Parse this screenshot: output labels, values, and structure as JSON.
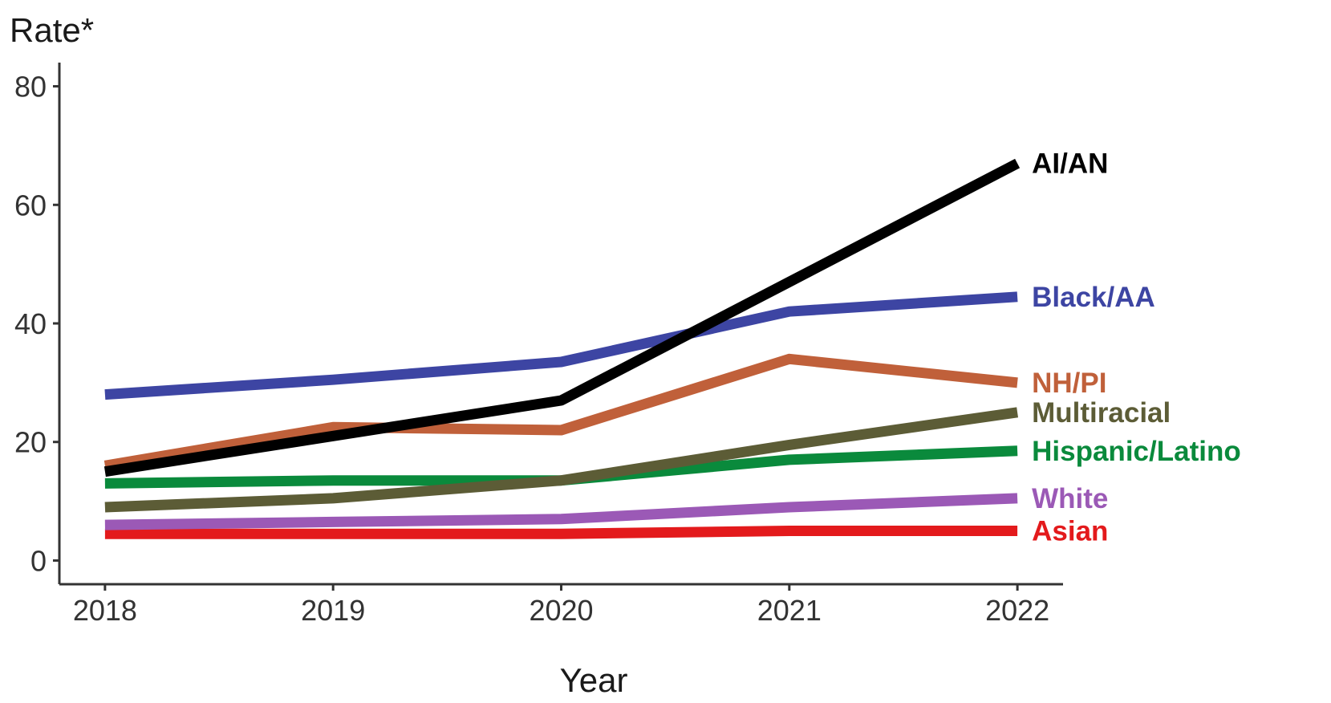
{
  "chart_data": {
    "type": "line",
    "title": "",
    "xlabel": "Year",
    "ylabel": "Rate*",
    "x": [
      2018,
      2019,
      2020,
      2021,
      2022
    ],
    "xticks": [
      "2018",
      "2019",
      "2020",
      "2021",
      "2022"
    ],
    "yticks": [
      "0",
      "20",
      "40",
      "60",
      "80"
    ],
    "xlim": [
      2017.8,
      2022.2
    ],
    "ylim": [
      -4,
      84
    ],
    "grid": false,
    "legend": "direct labels at line ends (right)",
    "series": [
      {
        "name": "Asian",
        "color": "#e31a1c",
        "values": [
          4.5,
          4.5,
          4.5,
          5,
          5
        ]
      },
      {
        "name": "White",
        "color": "#9b59b6",
        "values": [
          6,
          6.5,
          7,
          9,
          10.5
        ]
      },
      {
        "name": "Hispanic/Latino",
        "color": "#0a8a3c",
        "values": [
          13,
          13.5,
          13.5,
          17,
          18.5
        ]
      },
      {
        "name": "Multiracial",
        "color": "#5c5c36",
        "values": [
          9,
          10.5,
          13.5,
          19.5,
          25
        ]
      },
      {
        "name": "NH/PI",
        "color": "#c0603a",
        "values": [
          16,
          22.5,
          22,
          34,
          30
        ]
      },
      {
        "name": "Black/AA",
        "color": "#3d45a3",
        "values": [
          28,
          30.5,
          33.5,
          42,
          44.5
        ]
      },
      {
        "name": "AI/AN",
        "color": "#000000",
        "values": [
          15,
          21,
          27,
          47,
          67
        ]
      }
    ]
  }
}
